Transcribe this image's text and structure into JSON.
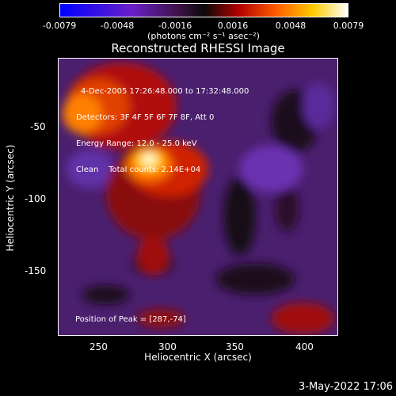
{
  "colorbar": {
    "ticks": [
      "-0.0079",
      "-0.0048",
      "-0.0016",
      "0.0016",
      "0.0048",
      "0.0079"
    ],
    "units": "(photons cm⁻² s⁻¹ asec⁻²)"
  },
  "title": "Reconstructed RHESSI Image",
  "info": {
    "time_range": "4-Dec-2005 17:26:48.000 to 17:32:48.000",
    "detectors": "Detectors: 3F 4F 5F 6F 7F 8F, Att 0",
    "energy": "Energy Range: 12.0 - 25.0 keV",
    "clean": "Clean    Total counts: 2.14E+04",
    "peak": "Position of Peak = [287,-74]"
  },
  "axes": {
    "xlabel": "Heliocentric X (arcsec)",
    "ylabel": "Heliocentric Y (arcsec)",
    "xticks": [
      "250",
      "300",
      "350",
      "400"
    ],
    "yticks": [
      "-50",
      "-100",
      "-150"
    ]
  },
  "datestamp": "3-May-2022 17:06"
}
